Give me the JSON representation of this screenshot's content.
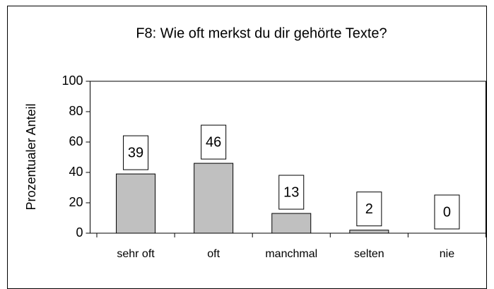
{
  "chart_data": {
    "type": "bar",
    "title": "F8: Wie oft merkst du dir gehörte Texte?",
    "y_label": "Prozentualer Anteil",
    "categories": [
      "sehr oft",
      "oft",
      "manchmal",
      "selten",
      "nie"
    ],
    "values": [
      39,
      46,
      13,
      2,
      0
    ],
    "color": "#c0c0c0",
    "ylim": [
      0,
      100
    ],
    "yticks": [
      0,
      20,
      40,
      60,
      80,
      100
    ],
    "grid": false
  }
}
